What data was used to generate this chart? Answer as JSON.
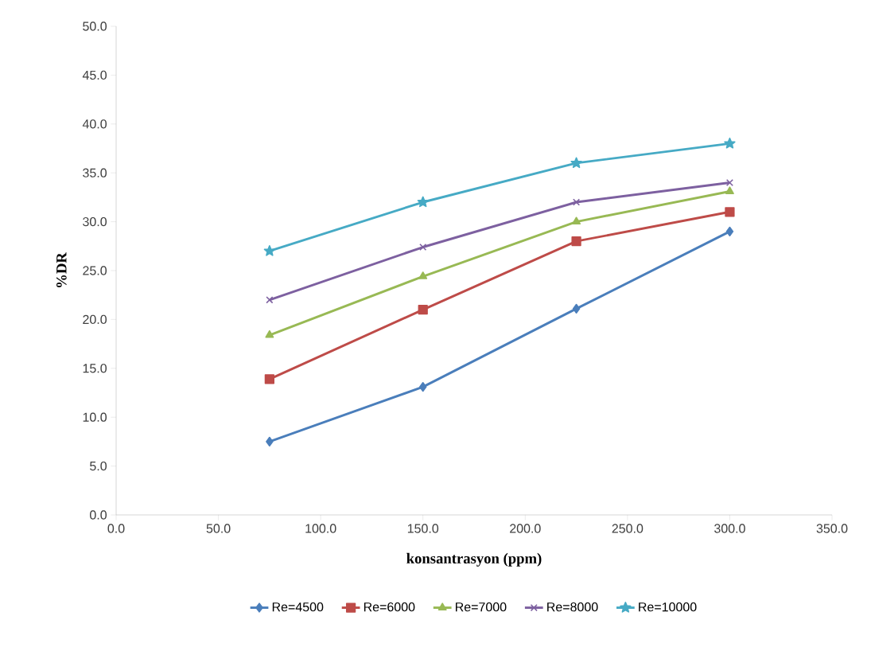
{
  "chart_data": {
    "type": "line",
    "xlabel": "konsantrasyon (ppm)",
    "ylabel": "%DR",
    "x": [
      75,
      150,
      225,
      300
    ],
    "series": [
      {
        "name": "Re=4500",
        "color": "#4a7ebb",
        "marker": "diamond",
        "values": [
          7.5,
          13.1,
          21.1,
          29.0
        ]
      },
      {
        "name": "Re=6000",
        "color": "#be4b48",
        "marker": "square",
        "values": [
          13.9,
          21.0,
          28.0,
          31.0
        ]
      },
      {
        "name": "Re=7000",
        "color": "#98b954",
        "marker": "triangle",
        "values": [
          18.4,
          24.4,
          30.0,
          33.1
        ]
      },
      {
        "name": "Re=8000",
        "color": "#7d60a0",
        "marker": "cross",
        "values": [
          22.0,
          27.4,
          32.0,
          34.0
        ]
      },
      {
        "name": "Re=10000",
        "color": "#46aac5",
        "marker": "star",
        "values": [
          27.0,
          32.0,
          36.0,
          38.0
        ]
      }
    ],
    "xlim": [
      0,
      350
    ],
    "ylim": [
      0,
      50
    ],
    "xticks": [
      {
        "value": 0,
        "label": "0.0"
      },
      {
        "value": 50,
        "label": "50.0"
      },
      {
        "value": 100,
        "label": "100.0"
      },
      {
        "value": 150,
        "label": "150.0"
      },
      {
        "value": 200,
        "label": "200.0"
      },
      {
        "value": 250,
        "label": "250.0"
      },
      {
        "value": 300,
        "label": "300.0"
      },
      {
        "value": 350,
        "label": "350.0"
      }
    ],
    "yticks": [
      {
        "value": 0,
        "label": "0.0"
      },
      {
        "value": 5,
        "label": "5.0"
      },
      {
        "value": 10,
        "label": "10.0"
      },
      {
        "value": 15,
        "label": "15.0"
      },
      {
        "value": 20,
        "label": "20.0"
      },
      {
        "value": 25,
        "label": "25.0"
      },
      {
        "value": 30,
        "label": "30.0"
      },
      {
        "value": 35,
        "label": "35.0"
      },
      {
        "value": 40,
        "label": "40.0"
      },
      {
        "value": 45,
        "label": "45.0"
      },
      {
        "value": 50,
        "label": "50.0"
      }
    ],
    "grid": false,
    "legend": "bottom",
    "line_style": "solid"
  }
}
